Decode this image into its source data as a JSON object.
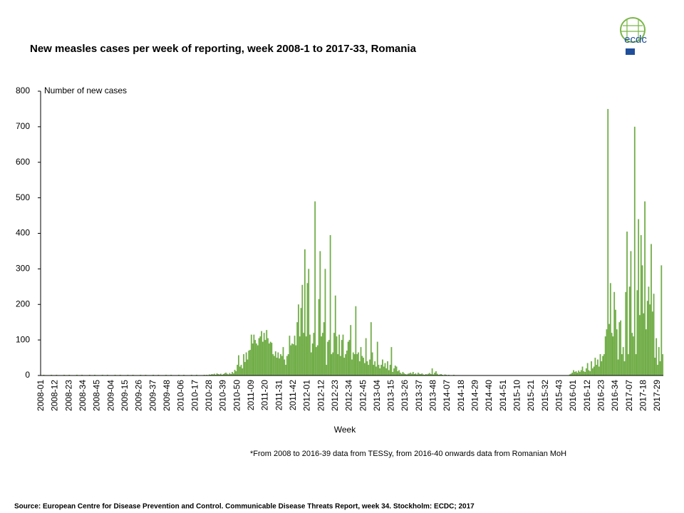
{
  "chart_data": {
    "type": "bar",
    "title": "New measles cases per week of reporting, week 2008-1 to 2017-33, Romania",
    "y_label": "Number of new cases",
    "x_label": "Week",
    "note": "*From 2008 to 2016-39 data from TESSy, from 2016-40 onwards data from Romanian MoH",
    "source": "Source: European Centre for Disease Prevention and Control. Communicable Disease Threats Report, week 34. Stockholm: ECDC; 2017",
    "logo_text": "ecdc",
    "color": "#70ad47",
    "ylim": [
      0,
      800
    ],
    "yticks": [
      0,
      100,
      200,
      300,
      400,
      500,
      600,
      700,
      800
    ],
    "grid": false,
    "categories": [
      "2008-01",
      null,
      null,
      null,
      null,
      null,
      null,
      null,
      null,
      null,
      null,
      "2008-12",
      null,
      null,
      null,
      null,
      null,
      null,
      null,
      null,
      null,
      null,
      "2008-23",
      null,
      null,
      null,
      null,
      null,
      null,
      null,
      null,
      null,
      null,
      "2008-34",
      null,
      null,
      null,
      null,
      null,
      null,
      null,
      null,
      null,
      null,
      "2008-45",
      null,
      null,
      null,
      null,
      null,
      null,
      null,
      null,
      null,
      null,
      "2009-04",
      null,
      null,
      null,
      null,
      null,
      null,
      null,
      null,
      null,
      null,
      "2009-15",
      null,
      null,
      null,
      null,
      null,
      null,
      null,
      null,
      null,
      null,
      "2009-26",
      null,
      null,
      null,
      null,
      null,
      null,
      null,
      null,
      null,
      null,
      "2009-37",
      null,
      null,
      null,
      null,
      null,
      null,
      null,
      null,
      null,
      null,
      "2009-48",
      null,
      null,
      null,
      null,
      null,
      null,
      null,
      null,
      null,
      null,
      "2010-06",
      null,
      null,
      null,
      null,
      null,
      null,
      null,
      null,
      null,
      null,
      "2010-17",
      null,
      null,
      null,
      null,
      null,
      null,
      null,
      null,
      null,
      null,
      "2010-28",
      null,
      null,
      null,
      null,
      null,
      null,
      null,
      null,
      null,
      null,
      "2010-39",
      null,
      null,
      null,
      null,
      null,
      null,
      null,
      null,
      null,
      null,
      "2010-50",
      null,
      null,
      null,
      null,
      null,
      null,
      null,
      null,
      null,
      null,
      "2011-09",
      null,
      null,
      null,
      null,
      null,
      null,
      null,
      null,
      null,
      null,
      "2011-20",
      null,
      null,
      null,
      null,
      null,
      null,
      null,
      null,
      null,
      null,
      "2011-31",
      null,
      null,
      null,
      null,
      null,
      null,
      null,
      null,
      null,
      null,
      "2011-42",
      null,
      null,
      null,
      null,
      null,
      null,
      null,
      null,
      null,
      null,
      "2012-01",
      null,
      null,
      null,
      null,
      null,
      null,
      null,
      null,
      null,
      null,
      "2012-12",
      null,
      null,
      null,
      null,
      null,
      null,
      null,
      null,
      null,
      null,
      "2012-23",
      null,
      null,
      null,
      null,
      null,
      null,
      null,
      null,
      null,
      null,
      "2012-34",
      null,
      null,
      null,
      null,
      null,
      null,
      null,
      null,
      null,
      null,
      "2012-45",
      null,
      null,
      null,
      null,
      null,
      null,
      null,
      null,
      null,
      null,
      "2013-04",
      null,
      null,
      null,
      null,
      null,
      null,
      null,
      null,
      null,
      null,
      "2013-15",
      null,
      null,
      null,
      null,
      null,
      null,
      null,
      null,
      null,
      null,
      "2013-26",
      null,
      null,
      null,
      null,
      null,
      null,
      null,
      null,
      null,
      null,
      "2013-37",
      null,
      null,
      null,
      null,
      null,
      null,
      null,
      null,
      null,
      null,
      "2013-48",
      null,
      null,
      null,
      null,
      null,
      null,
      null,
      null,
      null,
      null,
      "2014-07",
      null,
      null,
      null,
      null,
      null,
      null,
      null,
      null,
      null,
      null,
      "2014-18",
      null,
      null,
      null,
      null,
      null,
      null,
      null,
      null,
      null,
      null,
      "2014-29",
      null,
      null,
      null,
      null,
      null,
      null,
      null,
      null,
      null,
      null,
      "2014-40",
      null,
      null,
      null,
      null,
      null,
      null,
      null,
      null,
      null,
      null,
      "2014-51",
      null,
      null,
      null,
      null,
      null,
      null,
      null,
      null,
      null,
      null,
      "2015-10",
      null,
      null,
      null,
      null,
      null,
      null,
      null,
      null,
      null,
      null,
      "2015-21",
      null,
      null,
      null,
      null,
      null,
      null,
      null,
      null,
      null,
      null,
      "2015-32",
      null,
      null,
      null,
      null,
      null,
      null,
      null,
      null,
      null,
      null,
      "2015-43",
      null,
      null,
      null,
      null,
      null,
      null,
      null,
      null,
      null,
      null,
      "2016-01",
      null,
      null,
      null,
      null,
      null,
      null,
      null,
      null,
      null,
      null,
      "2016-12",
      null,
      null,
      null,
      null,
      null,
      null,
      null,
      null,
      null,
      null,
      "2016-23",
      null,
      null,
      null,
      null,
      null,
      null,
      null,
      null,
      null,
      null,
      "2016-34",
      null,
      null,
      null,
      null,
      null,
      null,
      null,
      null,
      null,
      null,
      "2017-07",
      null,
      null,
      null,
      null,
      null,
      null,
      null,
      null,
      null,
      null,
      "2017-18",
      null,
      null,
      null,
      null,
      null,
      null,
      null,
      null,
      null,
      null,
      "2017-29",
      null,
      null,
      null,
      null
    ],
    "values": [
      1,
      0,
      2,
      1,
      0,
      1,
      1,
      0,
      2,
      1,
      1,
      0,
      2,
      1,
      0,
      1,
      1,
      0,
      2,
      1,
      1,
      0,
      2,
      1,
      0,
      1,
      1,
      0,
      2,
      1,
      1,
      0,
      2,
      1,
      0,
      1,
      1,
      0,
      2,
      1,
      1,
      0,
      2,
      1,
      0,
      1,
      1,
      0,
      2,
      1,
      1,
      0,
      2,
      1,
      0,
      1,
      1,
      0,
      2,
      1,
      1,
      0,
      2,
      1,
      0,
      1,
      1,
      0,
      2,
      1,
      1,
      0,
      2,
      1,
      0,
      1,
      1,
      0,
      2,
      1,
      1,
      0,
      2,
      1,
      0,
      1,
      1,
      0,
      2,
      1,
      1,
      0,
      2,
      1,
      0,
      1,
      1,
      0,
      2,
      1,
      1,
      0,
      2,
      1,
      0,
      1,
      1,
      0,
      2,
      1,
      1,
      0,
      2,
      1,
      0,
      1,
      1,
      0,
      2,
      1,
      1,
      0,
      2,
      1,
      0,
      1,
      1,
      0,
      2,
      1,
      2,
      1,
      3,
      2,
      4,
      3,
      5,
      2,
      6,
      4,
      3,
      5,
      2,
      4,
      6,
      8,
      5,
      3,
      7,
      4,
      10,
      6,
      16,
      12,
      30,
      57,
      25,
      30,
      20,
      60,
      38,
      65,
      45,
      70,
      72,
      115,
      90,
      115,
      100,
      90,
      85,
      105,
      110,
      125,
      95,
      120,
      100,
      128,
      105,
      90,
      95,
      92,
      60,
      55,
      68,
      50,
      65,
      48,
      60,
      55,
      80,
      45,
      30,
      55,
      60,
      112,
      85,
      90,
      88,
      112,
      85,
      150,
      200,
      110,
      190,
      255,
      120,
      355,
      110,
      260,
      300,
      115,
      65,
      90,
      120,
      490,
      80,
      85,
      215,
      350,
      110,
      120,
      150,
      300,
      30,
      95,
      100,
      395,
      60,
      65,
      120,
      225,
      110,
      60,
      115,
      55,
      100,
      115,
      50,
      60,
      70,
      95,
      100,
      142,
      45,
      65,
      60,
      195,
      60,
      65,
      40,
      80,
      55,
      50,
      35,
      105,
      40,
      30,
      45,
      150,
      65,
      30,
      40,
      25,
      95,
      30,
      20,
      30,
      45,
      25,
      35,
      20,
      40,
      15,
      30,
      80,
      10,
      20,
      28,
      25,
      12,
      15,
      8,
      5,
      10,
      6,
      4,
      3,
      5,
      6,
      8,
      5,
      10,
      4,
      6,
      3,
      8,
      5,
      4,
      6,
      3,
      2,
      4,
      3,
      5,
      7,
      4,
      20,
      3,
      8,
      12,
      5,
      2,
      3,
      4,
      2,
      1,
      3,
      2,
      1,
      2,
      1,
      0,
      1,
      2,
      1,
      0,
      1,
      1,
      0,
      1,
      0,
      1,
      0,
      0,
      1,
      0,
      1,
      0,
      1,
      0,
      0,
      1,
      0,
      1,
      0,
      1,
      0,
      0,
      1,
      0,
      1,
      0,
      1,
      0,
      0,
      1,
      0,
      1,
      0,
      1,
      0,
      0,
      1,
      0,
      1,
      0,
      1,
      0,
      0,
      1,
      0,
      1,
      0,
      1,
      0,
      0,
      1,
      0,
      1,
      0,
      1,
      0,
      0,
      1,
      0,
      1,
      0,
      1,
      0,
      0,
      1,
      0,
      1,
      0,
      1,
      0,
      0,
      1,
      0,
      1,
      0,
      1,
      0,
      0,
      1,
      0,
      1,
      0,
      1,
      0,
      0,
      1,
      0,
      1,
      3,
      5,
      8,
      15,
      10,
      12,
      8,
      14,
      10,
      15,
      25,
      12,
      10,
      20,
      35,
      15,
      12,
      40,
      20,
      25,
      50,
      30,
      45,
      25,
      60,
      40,
      55,
      60,
      110,
      130,
      750,
      145,
      260,
      120,
      110,
      235,
      185,
      130,
      45,
      150,
      155,
      60,
      80,
      40,
      235,
      405,
      60,
      250,
      350,
      120,
      110,
      700,
      60,
      240,
      440,
      170,
      395,
      310,
      175,
      490,
      130,
      210,
      250,
      200,
      370,
      180,
      230,
      50,
      105,
      30,
      80,
      40,
      310,
      60
    ]
  }
}
